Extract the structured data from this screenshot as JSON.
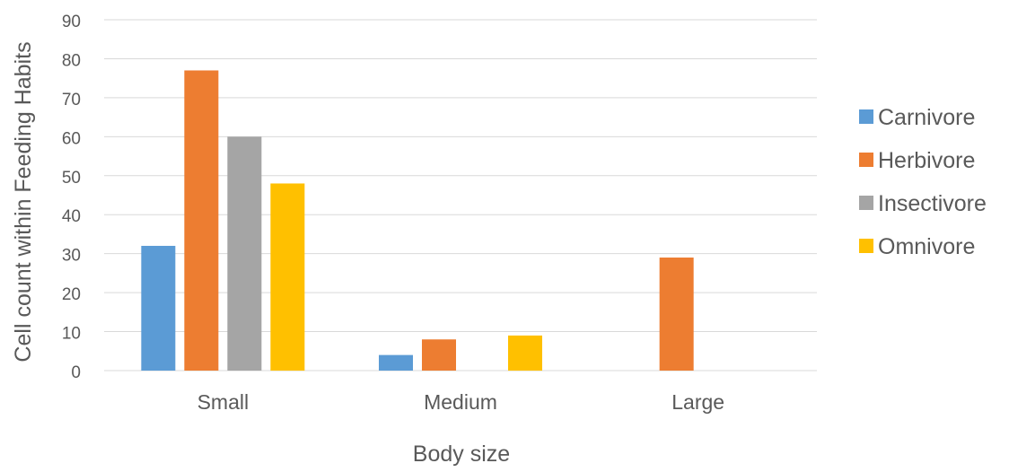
{
  "chart_data": {
    "type": "bar",
    "title": "",
    "xlabel": "Body size",
    "ylabel": "Cell count within Feeding Habits",
    "categories": [
      "Small",
      "Medium",
      "Large"
    ],
    "ylim": [
      0,
      90
    ],
    "yticks": [
      0,
      10,
      20,
      30,
      40,
      50,
      60,
      70,
      80,
      90
    ],
    "grid": true,
    "legend_position": "right",
    "series": [
      {
        "name": "Carnivore",
        "color": "#5B9BD5",
        "values": [
          32,
          4,
          0
        ]
      },
      {
        "name": "Herbivore",
        "color": "#ED7D31",
        "values": [
          77,
          8,
          29
        ]
      },
      {
        "name": "Insectivore",
        "color": "#A5A5A5",
        "values": [
          60,
          0,
          0
        ]
      },
      {
        "name": "Omnivore",
        "color": "#FFC000",
        "values": [
          48,
          9,
          0
        ]
      }
    ]
  }
}
